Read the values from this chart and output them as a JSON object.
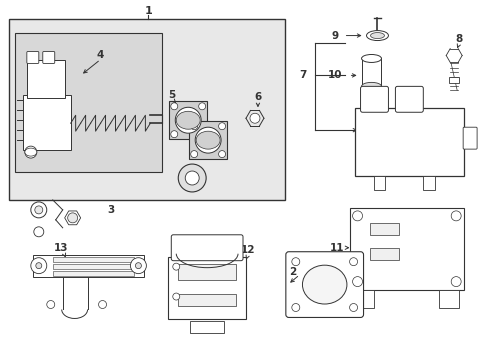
{
  "bg_color": "#ffffff",
  "box_bg": "#e8e8e8",
  "line_color": "#333333",
  "fig_width": 4.89,
  "fig_height": 3.6,
  "dpi": 100
}
